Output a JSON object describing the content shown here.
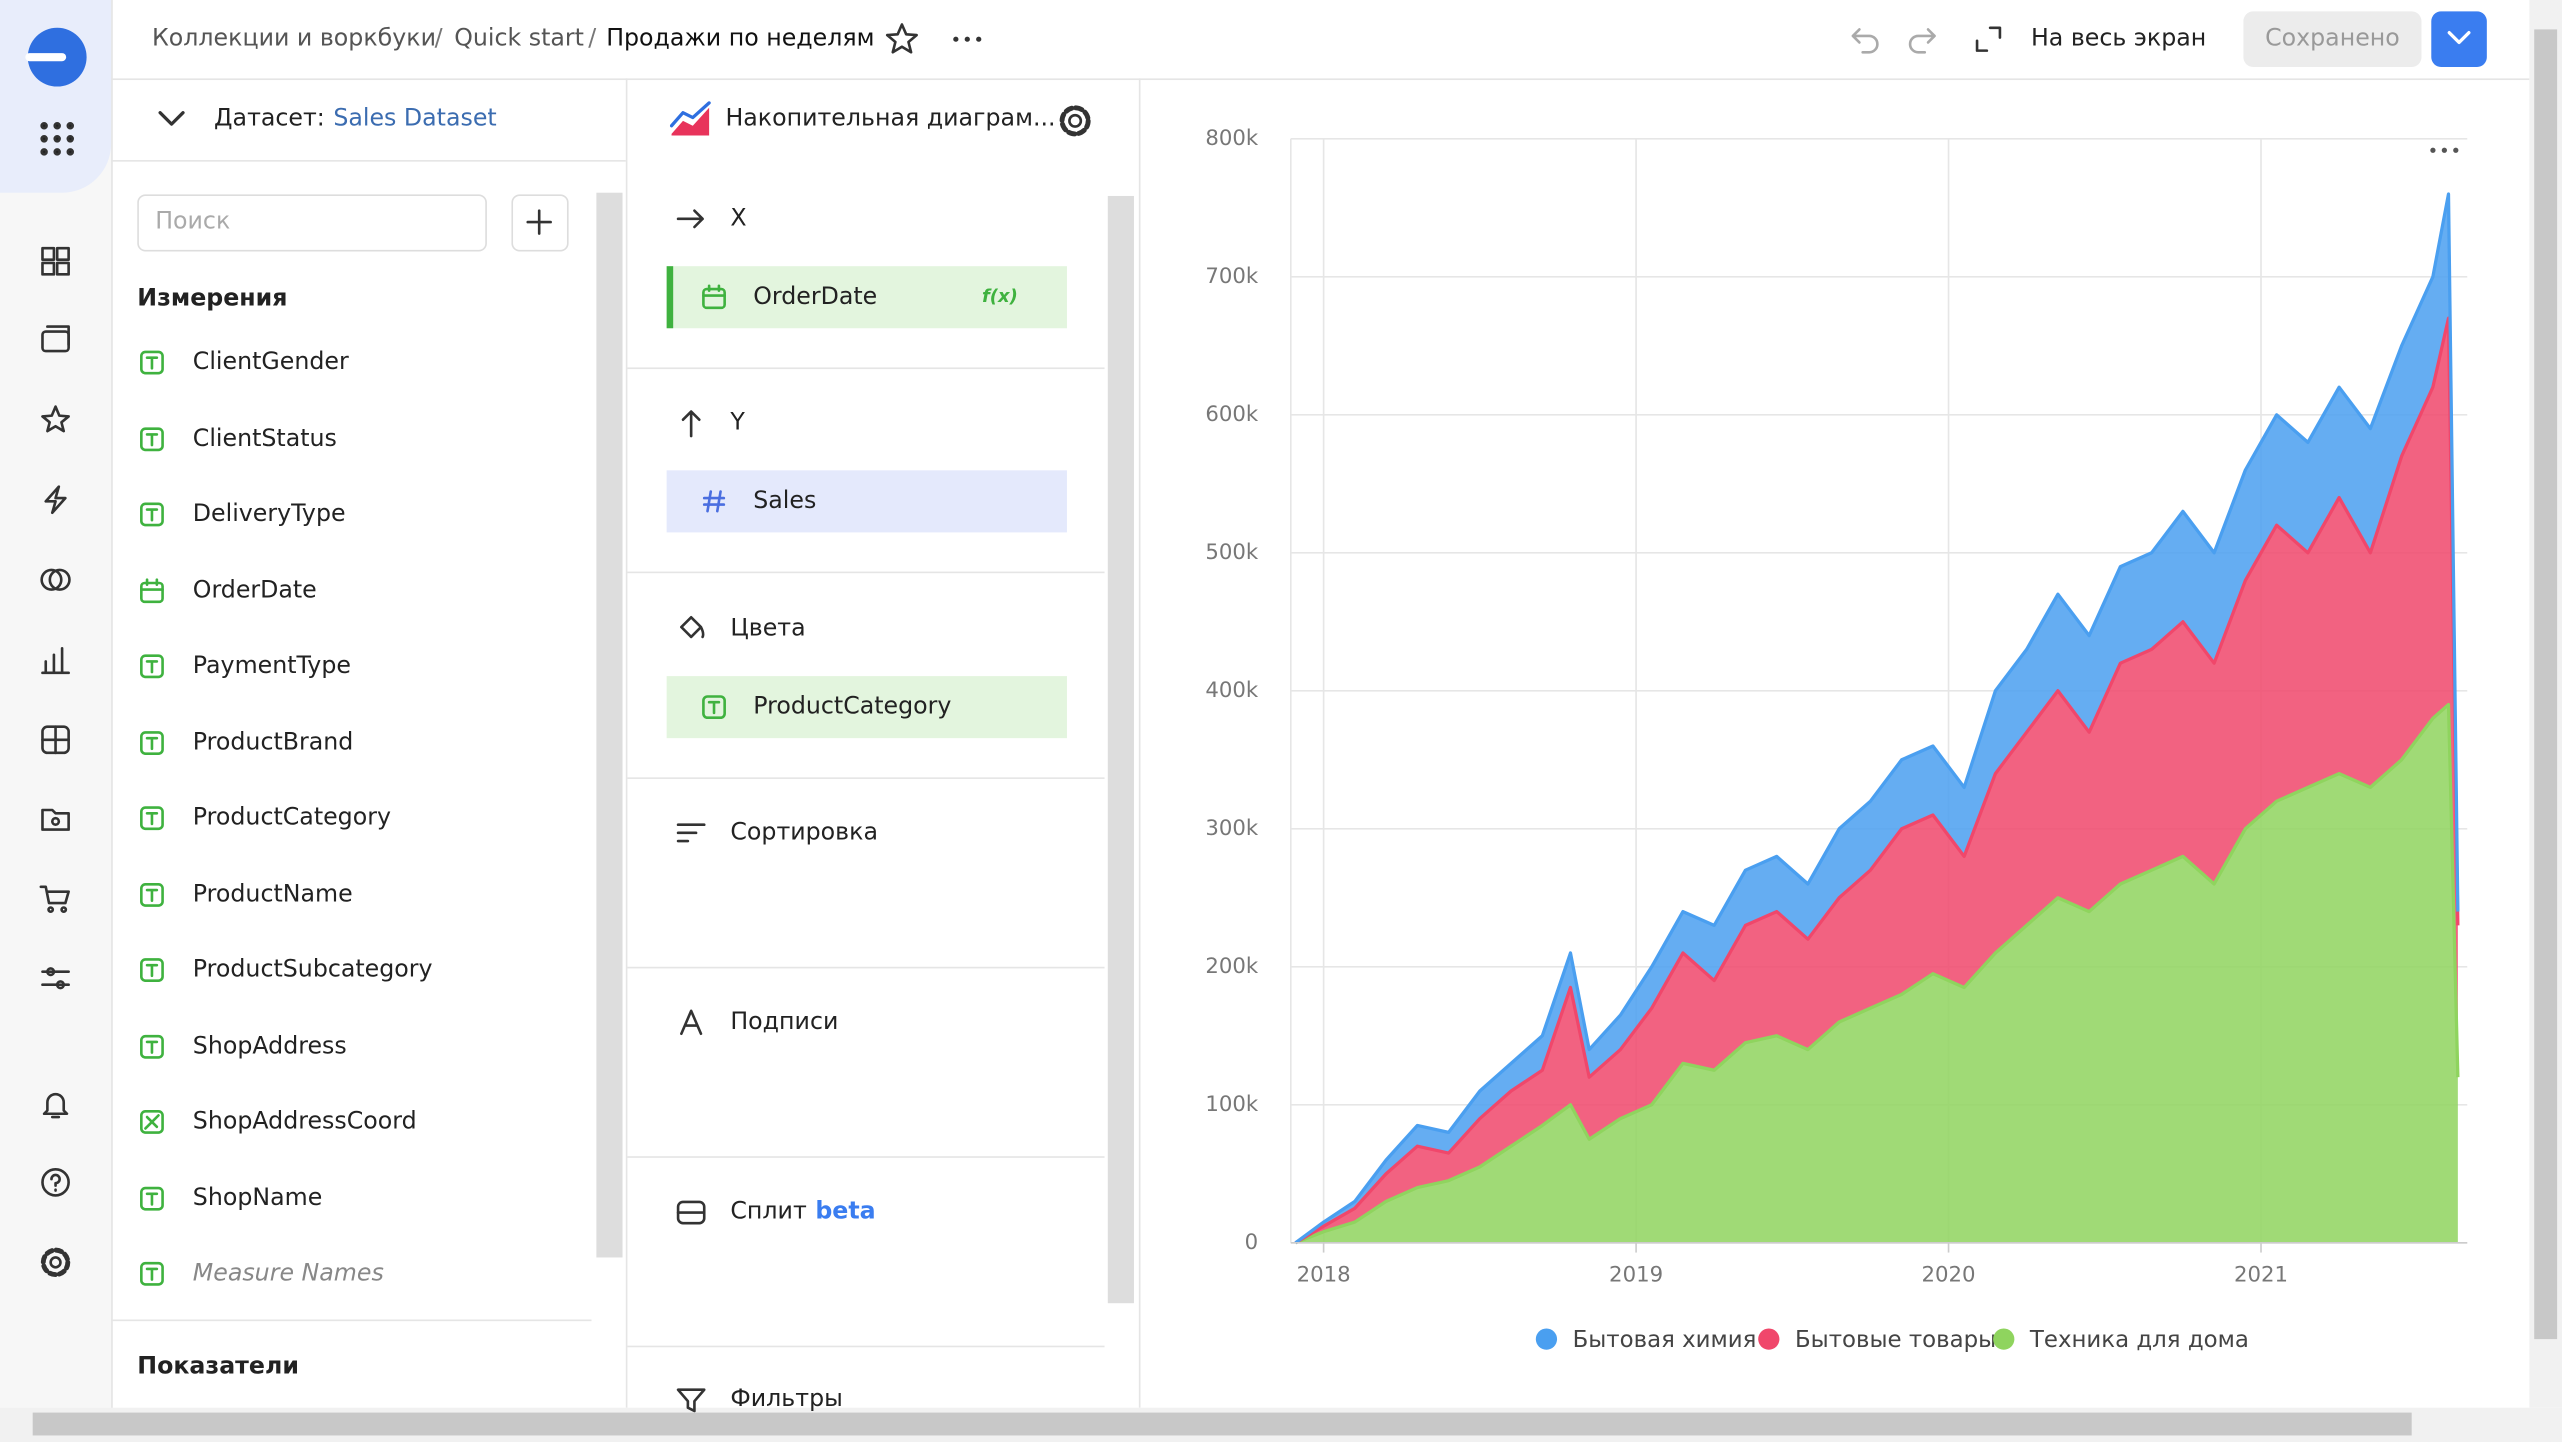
{
  "header": {
    "breadcrumbs": [
      "Коллекции и воркбуки",
      "Quick start"
    ],
    "separator": "/",
    "title": "Продажи по неделям",
    "fullscreen": "На весь экран",
    "saved": "Сохранено"
  },
  "dataset": {
    "label": "Датасет:",
    "name": "Sales Dataset",
    "search_placeholder": "Поиск",
    "dimensions_title": "Измерения",
    "dimensions": [
      "ClientGender",
      "ClientStatus",
      "DeliveryType",
      "OrderDate",
      "PaymentType",
      "ProductBrand",
      "ProductCategory",
      "ProductName",
      "ProductSubcategory",
      "ShopAddress",
      "ShopAddressCoord",
      "ShopName",
      "Measure Names"
    ],
    "measures_title": "Показатели"
  },
  "visualization": {
    "type_name": "Накопительная диаграм...",
    "formula_badge": "f(x)",
    "beta": "beta",
    "sections": [
      {
        "label": "X",
        "fields": [
          "OrderDate"
        ]
      },
      {
        "label": "Y",
        "fields": [
          "Sales"
        ]
      },
      {
        "label": "Цвета",
        "fields": [
          "ProductCategory"
        ]
      },
      {
        "label": "Сортировка",
        "fields": []
      },
      {
        "label": "Подписи",
        "fields": []
      },
      {
        "label": "Сплит",
        "fields": []
      },
      {
        "label": "Фильтры",
        "fields": []
      }
    ]
  },
  "chart_data": {
    "type": "stacked_area",
    "x": [
      2017.91,
      2018,
      2018.1,
      2018.2,
      2018.3,
      2018.4,
      2018.5,
      2018.6,
      2018.7,
      2018.79,
      2018.85,
      2018.95,
      2019.05,
      2019.15,
      2019.25,
      2019.35,
      2019.45,
      2019.55,
      2019.65,
      2019.75,
      2019.85,
      2019.95,
      2020.05,
      2020.15,
      2020.25,
      2020.35,
      2020.45,
      2020.55,
      2020.65,
      2020.75,
      2020.85,
      2020.95,
      2021.05,
      2021.15,
      2021.25,
      2021.35,
      2021.45,
      2021.55,
      2021.6,
      2021.63
    ],
    "series": [
      {
        "name": "Бытовая химия",
        "color": "#4a9ff0",
        "values": [
          0,
          3000,
          5000,
          10000,
          15000,
          15000,
          20000,
          20000,
          25000,
          25000,
          20000,
          25000,
          30000,
          30000,
          40000,
          40000,
          40000,
          40000,
          50000,
          50000,
          50000,
          50000,
          50000,
          60000,
          60000,
          70000,
          70000,
          70000,
          70000,
          80000,
          80000,
          80000,
          80000,
          80000,
          80000,
          90000,
          80000,
          80000,
          90000,
          10000
        ]
      },
      {
        "name": "Бытовые товары",
        "color": "#f0476b",
        "values": [
          0,
          4000,
          10000,
          20000,
          30000,
          20000,
          35000,
          40000,
          40000,
          85000,
          45000,
          50000,
          70000,
          80000,
          65000,
          85000,
          90000,
          80000,
          90000,
          100000,
          120000,
          115000,
          95000,
          130000,
          140000,
          150000,
          130000,
          160000,
          160000,
          170000,
          160000,
          180000,
          200000,
          170000,
          200000,
          170000,
          220000,
          240000,
          280000,
          110000
        ]
      },
      {
        "name": "Техника для дома",
        "color": "#8fd45e",
        "values": [
          0,
          8000,
          15000,
          30000,
          40000,
          45000,
          55000,
          70000,
          85000,
          100000,
          75000,
          90000,
          100000,
          130000,
          125000,
          145000,
          150000,
          140000,
          160000,
          170000,
          180000,
          195000,
          185000,
          210000,
          230000,
          250000,
          240000,
          260000,
          270000,
          280000,
          260000,
          300000,
          320000,
          330000,
          340000,
          330000,
          350000,
          380000,
          390000,
          120000
        ]
      }
    ],
    "xlim": [
      2017.895,
      2021.66
    ],
    "xticks": [
      2018,
      2019,
      2020,
      2021
    ],
    "ylim": [
      0,
      800000
    ],
    "yticks": [
      0,
      {
        "value": 100000,
        "label": "100k"
      },
      {
        "value": 200000,
        "label": "200k"
      },
      {
        "value": 300000,
        "label": "300k"
      },
      {
        "value": 400000,
        "label": "400k"
      },
      {
        "value": 500000,
        "label": "500k"
      },
      {
        "value": 600000,
        "label": "600k"
      },
      {
        "value": 700000,
        "label": "700k"
      },
      {
        "value": 800000,
        "label": "800k"
      }
    ],
    "grid": true,
    "legend": "bottom"
  }
}
